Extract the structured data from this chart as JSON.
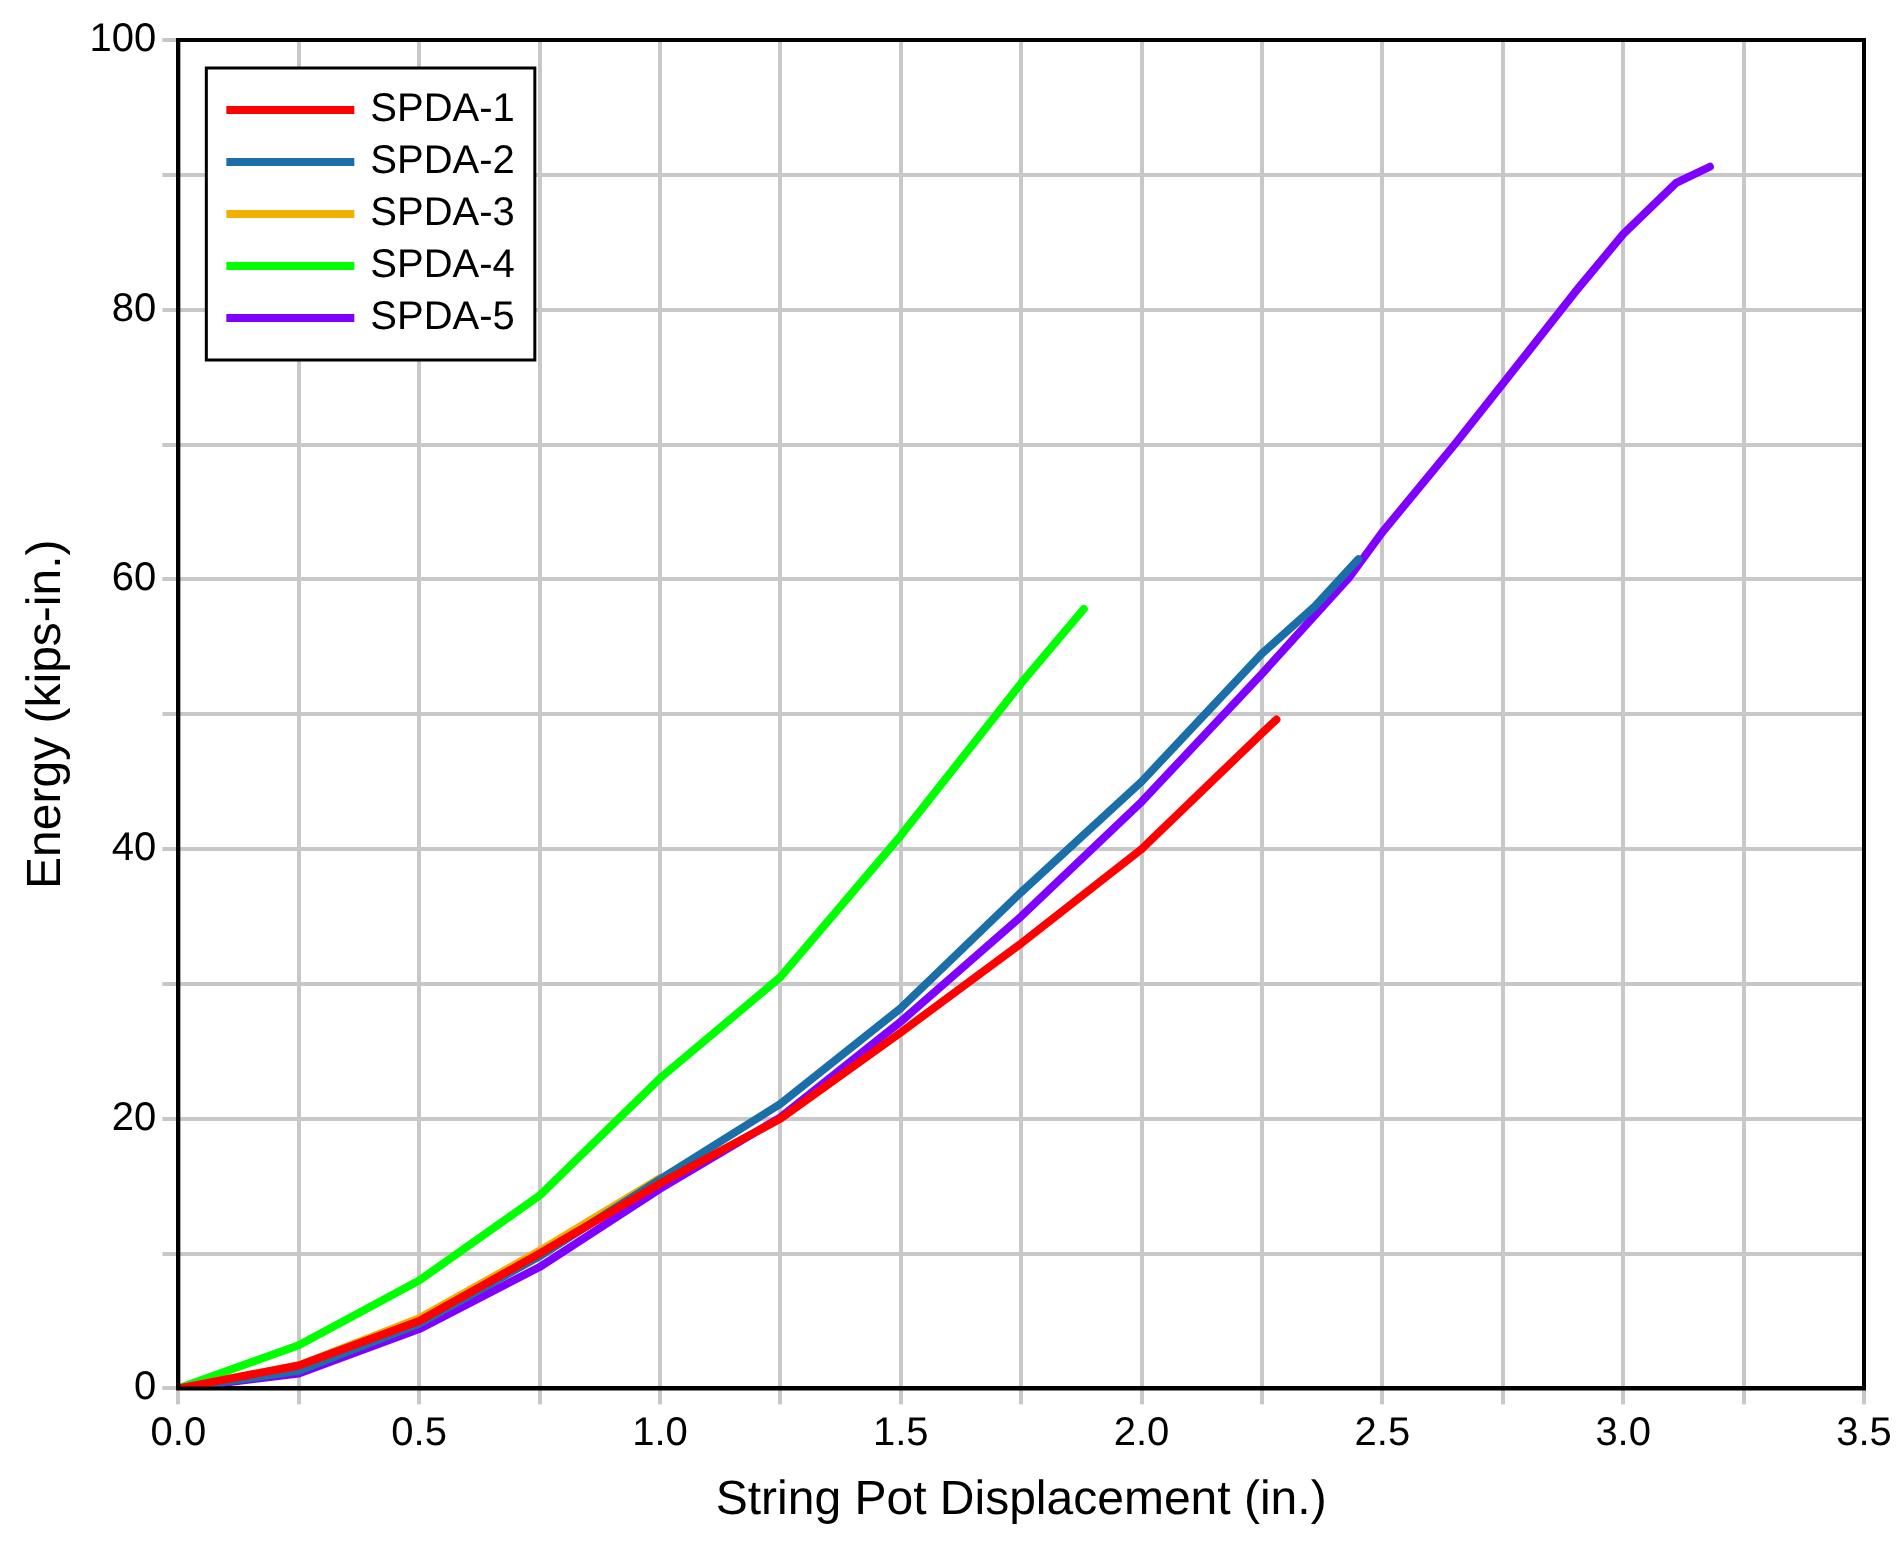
{
  "chart_data": {
    "type": "line",
    "xlabel": "String Pot Displacement (in.)",
    "ylabel": "Energy (kips-in.)",
    "xlim": [
      0,
      3.5
    ],
    "ylim": [
      0,
      100
    ],
    "xticks": [
      {
        "value": 0,
        "label": "0.0"
      },
      {
        "value": 0.25,
        "label": null
      },
      {
        "value": 0.5,
        "label": "0.5"
      },
      {
        "value": 0.75,
        "label": null
      },
      {
        "value": 1,
        "label": "1.0"
      },
      {
        "value": 1.25,
        "label": null
      },
      {
        "value": 1.5,
        "label": "1.5"
      },
      {
        "value": 1.75,
        "label": null
      },
      {
        "value": 2,
        "label": "2.0"
      },
      {
        "value": 2.25,
        "label": null
      },
      {
        "value": 2.5,
        "label": "2.5"
      },
      {
        "value": 2.75,
        "label": null
      },
      {
        "value": 3,
        "label": "3.0"
      },
      {
        "value": 3.25,
        "label": null
      },
      {
        "value": 3.5,
        "label": "3.5"
      }
    ],
    "yticks": [
      0,
      {
        "value": 10,
        "label": null
      },
      20,
      {
        "value": 30,
        "label": null
      },
      40,
      {
        "value": 50,
        "label": null
      },
      60,
      {
        "value": 70,
        "label": null
      },
      80,
      {
        "value": 90,
        "label": null
      },
      100
    ],
    "grid": true,
    "legend": "top left",
    "marker": "none",
    "line_style": "solid",
    "series": [
      {
        "name": "SPDA-1",
        "color": "#ff0000",
        "x": [
          0,
          0.25,
          0.5,
          0.75,
          1.0,
          1.25,
          1.5,
          1.75,
          2.0,
          2.25,
          2.28
        ],
        "values": [
          0,
          1.7,
          5,
          10,
          15.2,
          20,
          26.4,
          33,
          40,
          48.6,
          49.6
        ]
      },
      {
        "name": "SPDA-2",
        "color": "#1a6fa8",
        "x": [
          0,
          0.25,
          0.5,
          0.75,
          1.0,
          1.25,
          1.5,
          1.75,
          2.0,
          2.25,
          2.36,
          2.45
        ],
        "values": [
          0,
          1.3,
          4.8,
          9.8,
          15.5,
          21.1,
          28.2,
          36.8,
          45,
          54.5,
          58,
          61.5
        ]
      },
      {
        "name": "SPDA-3",
        "color": "#f0b000",
        "x": [
          0,
          0.25,
          0.5,
          0.75,
          1.0
        ],
        "values": [
          0,
          1.7,
          5.2,
          10.2,
          15.6
        ]
      },
      {
        "name": "SPDA-4",
        "color": "#00ff00",
        "x": [
          0,
          0.25,
          0.5,
          0.75,
          1.0,
          1.25,
          1.5,
          1.75,
          1.88
        ],
        "values": [
          0,
          3.2,
          8,
          14.3,
          23,
          30.5,
          41,
          52.3,
          57.8
        ]
      },
      {
        "name": "SPDA-5",
        "color": "#8000ff",
        "x": [
          0,
          0.25,
          0.5,
          0.75,
          1.0,
          1.25,
          1.5,
          1.75,
          2.0,
          2.25,
          2.43,
          2.5,
          2.65,
          2.75,
          2.9,
          3.0,
          3.11,
          3.18
        ],
        "values": [
          0,
          1.1,
          4.4,
          9,
          14.8,
          20.1,
          27.2,
          35,
          43.5,
          53,
          60.1,
          63.5,
          70,
          74.5,
          81.3,
          85.6,
          89.4,
          90.6
        ]
      }
    ]
  }
}
